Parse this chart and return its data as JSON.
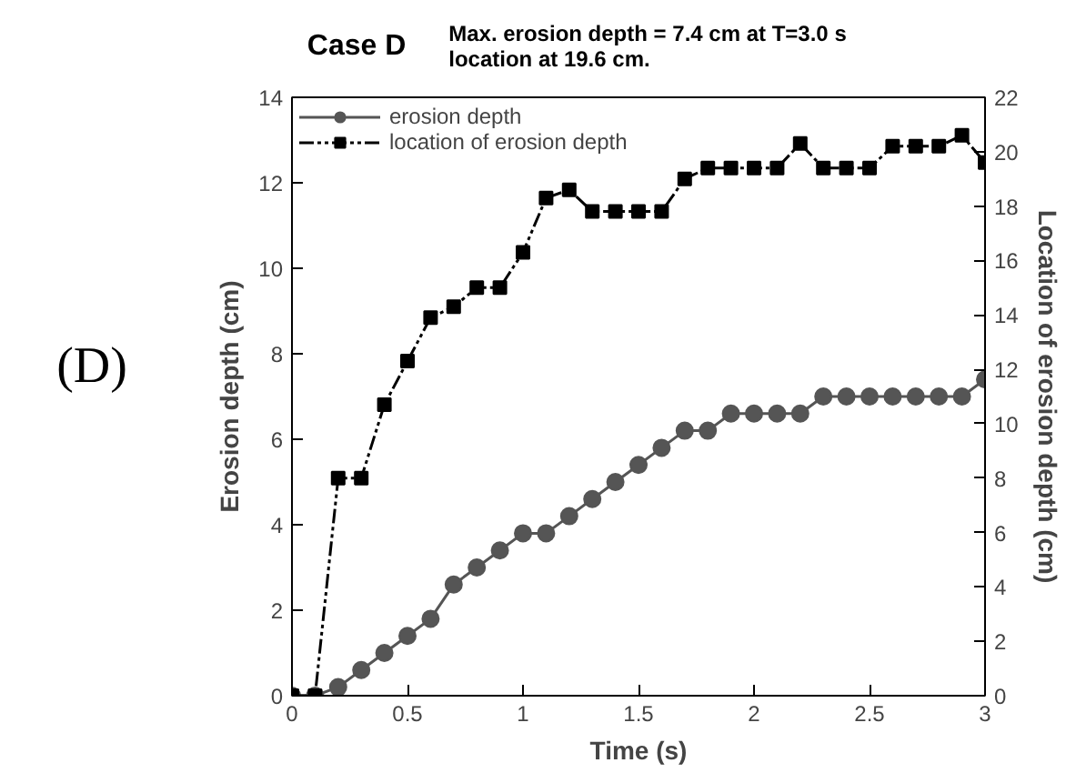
{
  "chart_data": {
    "type": "line",
    "title": "Case D",
    "subtitle": "Max. erosion depth = 7.4 cm at T=3.0 s\nlocation at 19.6 cm.",
    "annotations": [
      "(D)"
    ],
    "xlabel": "Time (s)",
    "ylabel": "Erosion depth (cm)",
    "y2label": "Location of erosion depth (cm)",
    "x": [
      0,
      0.1,
      0.2,
      0.3,
      0.4,
      0.5,
      0.6,
      0.7,
      0.8,
      0.9,
      1.0,
      1.1,
      1.2,
      1.3,
      1.4,
      1.5,
      1.6,
      1.7,
      1.8,
      1.9,
      2.0,
      2.1,
      2.2,
      2.3,
      2.4,
      2.5,
      2.6,
      2.7,
      2.8,
      2.9,
      3.0
    ],
    "series": [
      {
        "name": "erosion depth",
        "color": "#555555",
        "marker": "circle",
        "line_style": "solid",
        "values": [
          0,
          0,
          0.2,
          0.6,
          1.0,
          1.4,
          1.8,
          2.6,
          3.0,
          3.4,
          3.8,
          3.8,
          4.2,
          4.6,
          5.0,
          5.4,
          5.8,
          6.2,
          6.2,
          6.6,
          6.6,
          6.6,
          6.6,
          7.0,
          7.0,
          7.0,
          7.0,
          7.0,
          7.0,
          7.0,
          7.4
        ]
      },
      {
        "name": "location of erosion depth",
        "color": "#000000",
        "marker": "square",
        "line_style": "dashed",
        "axis": "y2",
        "values": [
          0,
          0,
          8.0,
          8.0,
          10.7,
          12.3,
          13.9,
          14.3,
          15.0,
          15.0,
          16.3,
          18.3,
          18.6,
          17.8,
          17.8,
          17.8,
          17.8,
          19.0,
          19.4,
          19.4,
          19.4,
          19.4,
          20.3,
          19.4,
          19.4,
          19.4,
          20.2,
          20.2,
          20.2,
          20.6,
          19.6
        ]
      }
    ],
    "xlim": [
      0,
      3
    ],
    "xticks": [
      0,
      0.5,
      1,
      1.5,
      2,
      2.5,
      3
    ],
    "ylim": [
      0,
      14
    ],
    "yticks": [
      0,
      2,
      4,
      6,
      8,
      10,
      12,
      14
    ],
    "y2lim": [
      0,
      22
    ],
    "y2ticks": [
      0,
      2,
      4,
      6,
      8,
      10,
      12,
      14,
      16,
      18,
      20,
      22
    ],
    "legend": "top left",
    "grid": false
  }
}
